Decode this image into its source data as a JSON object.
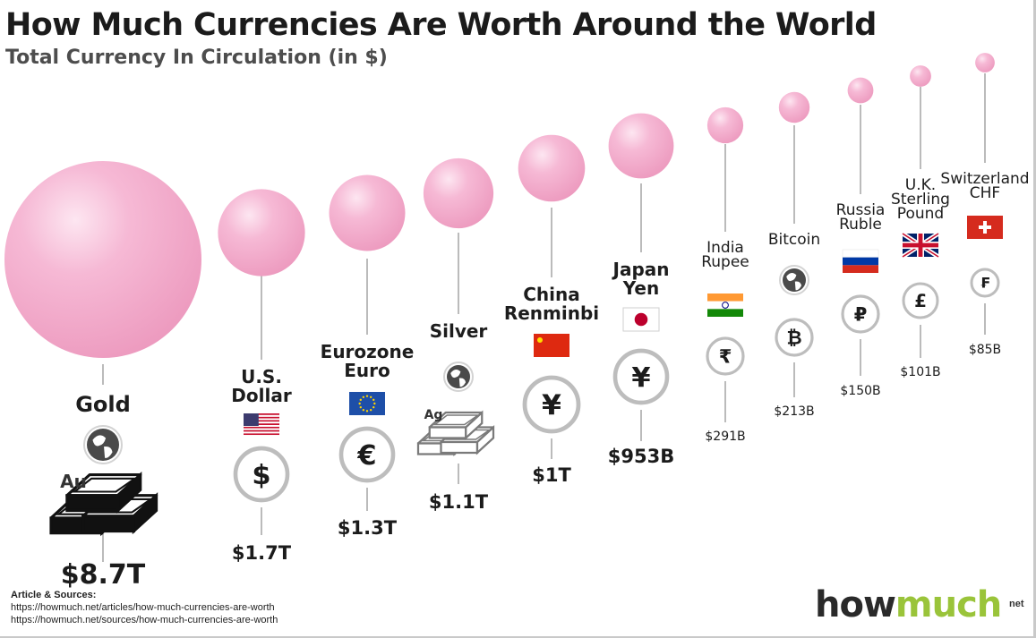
{
  "title": "How Much Currencies Are Worth Around the World",
  "subtitle": "Total Currency In Circulation (in $)",
  "sources": {
    "heading": "Article & Sources:",
    "lines": [
      "https://howmuch.net/articles/how-much-currencies-are-worth",
      "https://howmuch.net/sources/how-much-currencies-are-worth"
    ]
  },
  "logo": {
    "part1": "how",
    "part2": "much",
    "sup": "net"
  },
  "colors": {
    "bubble": "#f2a3c8",
    "line": "#777777",
    "ring": "#bdbdbd",
    "logo_accent": "#9ac43a"
  },
  "chart_data": {
    "type": "bubble",
    "unit": "$",
    "series": [
      {
        "name": "Gold",
        "label_lines": [
          "Gold"
        ],
        "value": 8.7,
        "value_label": "$8.7T",
        "bold": true,
        "icon": "gold-bars-icon",
        "metal_label": "Au",
        "has_globe": true
      },
      {
        "name": "U.S. Dollar",
        "label_lines": [
          "U.S.",
          "Dollar"
        ],
        "value": 1.7,
        "value_label": "$1.7T",
        "bold": true,
        "flag": "us",
        "symbol": "$"
      },
      {
        "name": "Eurozone Euro",
        "label_lines": [
          "Eurozone",
          "Euro"
        ],
        "value": 1.3,
        "value_label": "$1.3T",
        "bold": true,
        "flag": "eu",
        "symbol": "€"
      },
      {
        "name": "Silver",
        "label_lines": [
          "Silver"
        ],
        "value": 1.1,
        "value_label": "$1.1T",
        "bold": true,
        "icon": "silver-bars-icon",
        "metal_label": "Ag",
        "has_globe": true
      },
      {
        "name": "China Renminbi",
        "label_lines": [
          "China",
          "Renminbi"
        ],
        "value": 1.0,
        "value_label": "$1T",
        "bold": true,
        "flag": "cn",
        "symbol": "¥"
      },
      {
        "name": "Japan Yen",
        "label_lines": [
          "Japan",
          "Yen"
        ],
        "value": 0.953,
        "value_label": "$953B",
        "bold": true,
        "flag": "jp",
        "symbol": "¥"
      },
      {
        "name": "India Rupee",
        "label_lines": [
          "India",
          "Rupee"
        ],
        "value": 0.291,
        "value_label": "$291B",
        "bold": false,
        "flag": "in",
        "symbol": "₹"
      },
      {
        "name": "Bitcoin",
        "label_lines": [
          "Bitcoin"
        ],
        "value": 0.213,
        "value_label": "$213B",
        "bold": false,
        "has_globe": true,
        "symbol": "₿"
      },
      {
        "name": "Russia Ruble",
        "label_lines": [
          "Russia",
          "Ruble"
        ],
        "value": 0.15,
        "value_label": "$150B",
        "bold": false,
        "flag": "ru",
        "symbol": "₽"
      },
      {
        "name": "U.K. Sterling Pound",
        "label_lines": [
          "U.K.",
          "Sterling",
          "Pound"
        ],
        "value": 0.101,
        "value_label": "$101B",
        "bold": false,
        "flag": "uk",
        "symbol": "£"
      },
      {
        "name": "Switzerland CHF",
        "label_lines": [
          "Switzerland",
          "CHF"
        ],
        "value": 0.085,
        "value_label": "$85B",
        "bold": false,
        "flag": "ch",
        "symbol": "₣"
      }
    ]
  }
}
